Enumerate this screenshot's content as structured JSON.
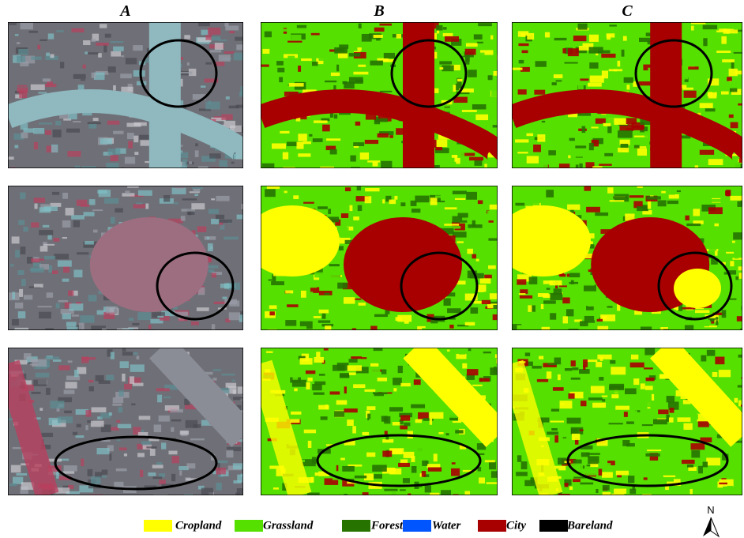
{
  "columns": [
    "A",
    "B",
    "C"
  ],
  "legend": [
    {
      "label": "Cropland",
      "color": "#ffff00"
    },
    {
      "label": "Grassland",
      "color": "#55e000"
    },
    {
      "label": "Forest",
      "color": "#267300"
    },
    {
      "label": "Water",
      "color": "#0055ff"
    },
    {
      "label": "City",
      "color": "#a80000"
    },
    {
      "label": "Bareland",
      "color": "#000000"
    }
  ],
  "north_label": "N"
}
